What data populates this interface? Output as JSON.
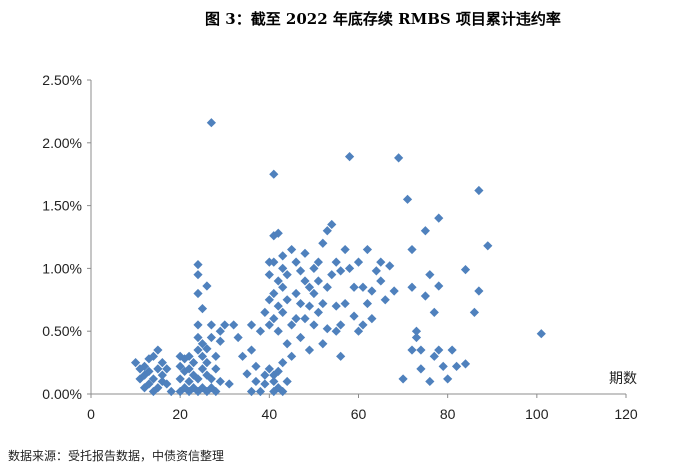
{
  "chart_data": {
    "type": "scatter",
    "title": "图 3：截至 2022 年底存续 RMBS 项目累计违约率",
    "xlabel": "期数",
    "ylabel": "",
    "source": "数据来源：受托报告数据，中债资信整理",
    "xlim": [
      0,
      120
    ],
    "ylim": [
      0,
      2.5
    ],
    "x_ticks": [
      "0",
      "20",
      "40",
      "60",
      "80",
      "100",
      "120"
    ],
    "y_ticks": [
      "0.00%",
      "0.50%",
      "1.00%",
      "1.50%",
      "2.00%",
      "2.50%"
    ],
    "grid": false,
    "legend": "none",
    "color": "#4f81bd",
    "series": [
      {
        "points": [
          [
            10,
            0.25
          ],
          [
            11,
            0.12
          ],
          [
            11,
            0.2
          ],
          [
            12,
            0.05
          ],
          [
            12,
            0.15
          ],
          [
            12,
            0.22
          ],
          [
            13,
            0.08
          ],
          [
            13,
            0.18
          ],
          [
            13,
            0.28
          ],
          [
            14,
            0.02
          ],
          [
            14,
            0.12
          ],
          [
            14,
            0.3
          ],
          [
            15,
            0.05
          ],
          [
            15,
            0.2
          ],
          [
            15,
            0.35
          ],
          [
            16,
            0.1
          ],
          [
            16,
            0.25
          ],
          [
            16,
            0.15
          ],
          [
            17,
            0.2
          ],
          [
            17,
            0.08
          ],
          [
            18,
            0.02
          ],
          [
            20,
            0.02
          ],
          [
            20,
            0.12
          ],
          [
            20,
            0.22
          ],
          [
            20,
            0.3
          ],
          [
            21,
            0.05
          ],
          [
            21,
            0.18
          ],
          [
            21,
            0.28
          ],
          [
            22,
            0.02
          ],
          [
            22,
            0.1
          ],
          [
            22,
            0.2
          ],
          [
            22,
            0.3
          ],
          [
            23,
            0.05
          ],
          [
            23,
            0.15
          ],
          [
            23,
            0.25
          ],
          [
            24,
            0.02
          ],
          [
            24,
            0.12
          ],
          [
            24,
            0.35
          ],
          [
            24,
            0.45
          ],
          [
            24,
            0.55
          ],
          [
            24,
            0.8
          ],
          [
            24,
            0.95
          ],
          [
            24,
            1.03
          ],
          [
            25,
            0.05
          ],
          [
            25,
            0.2
          ],
          [
            25,
            0.3
          ],
          [
            25,
            0.4
          ],
          [
            25,
            0.68
          ],
          [
            26,
            0.02
          ],
          [
            26,
            0.15
          ],
          [
            26,
            0.25
          ],
          [
            26,
            0.36
          ],
          [
            26,
            0.86
          ],
          [
            27,
            0.05
          ],
          [
            27,
            0.12
          ],
          [
            27,
            0.45
          ],
          [
            27,
            0.55
          ],
          [
            27,
            2.16
          ],
          [
            28,
            0.02
          ],
          [
            28,
            0.2
          ],
          [
            28,
            0.3
          ],
          [
            29,
            0.1
          ],
          [
            29,
            0.42
          ],
          [
            29,
            0.5
          ],
          [
            30,
            0.55
          ],
          [
            31,
            0.08
          ],
          [
            32,
            0.55
          ],
          [
            33,
            0.45
          ],
          [
            34,
            0.3
          ],
          [
            35,
            0.16
          ],
          [
            36,
            0.35
          ],
          [
            36,
            0.55
          ],
          [
            36,
            0.02
          ],
          [
            37,
            0.1
          ],
          [
            37,
            0.22
          ],
          [
            38,
            0.5
          ],
          [
            38,
            0.02
          ],
          [
            39,
            0.15
          ],
          [
            39,
            0.65
          ],
          [
            39,
            0.08
          ],
          [
            40,
            0.2
          ],
          [
            40,
            0.55
          ],
          [
            40,
            0.75
          ],
          [
            40,
            0.95
          ],
          [
            40,
            1.05
          ],
          [
            41,
            0.02
          ],
          [
            41,
            0.1
          ],
          [
            41,
            0.15
          ],
          [
            41,
            0.6
          ],
          [
            41,
            0.8
          ],
          [
            41,
            1.05
          ],
          [
            41,
            1.26
          ],
          [
            41,
            1.75
          ],
          [
            42,
            0.05
          ],
          [
            42,
            0.18
          ],
          [
            42,
            0.5
          ],
          [
            42,
            0.7
          ],
          [
            42,
            0.9
          ],
          [
            42,
            1.28
          ],
          [
            43,
            0.02
          ],
          [
            43,
            0.25
          ],
          [
            43,
            0.65
          ],
          [
            43,
            0.85
          ],
          [
            43,
            1.0
          ],
          [
            43,
            1.1
          ],
          [
            44,
            0.1
          ],
          [
            44,
            0.4
          ],
          [
            44,
            0.75
          ],
          [
            44,
            0.95
          ],
          [
            45,
            0.3
          ],
          [
            45,
            0.55
          ],
          [
            45,
            1.15
          ],
          [
            46,
            0.6
          ],
          [
            46,
            0.8
          ],
          [
            46,
            1.05
          ],
          [
            47,
            0.45
          ],
          [
            47,
            0.72
          ],
          [
            47,
            0.98
          ],
          [
            48,
            0.6
          ],
          [
            48,
            0.9
          ],
          [
            48,
            1.12
          ],
          [
            49,
            0.35
          ],
          [
            49,
            0.7
          ],
          [
            49,
            0.85
          ],
          [
            50,
            0.55
          ],
          [
            50,
            0.8
          ],
          [
            50,
            1.0
          ],
          [
            51,
            0.65
          ],
          [
            51,
            0.9
          ],
          [
            51,
            1.05
          ],
          [
            52,
            0.4
          ],
          [
            52,
            0.72
          ],
          [
            52,
            1.2
          ],
          [
            53,
            0.52
          ],
          [
            53,
            0.85
          ],
          [
            53,
            1.3
          ],
          [
            54,
            0.95
          ],
          [
            54,
            1.35
          ],
          [
            55,
            0.5
          ],
          [
            55,
            0.7
          ],
          [
            55,
            1.05
          ],
          [
            56,
            0.3
          ],
          [
            56,
            0.55
          ],
          [
            56,
            0.98
          ],
          [
            57,
            0.72
          ],
          [
            57,
            1.15
          ],
          [
            58,
            1.89
          ],
          [
            58,
            1.0
          ],
          [
            59,
            0.62
          ],
          [
            59,
            0.85
          ],
          [
            60,
            0.5
          ],
          [
            60,
            1.05
          ],
          [
            61,
            0.85
          ],
          [
            61,
            0.55
          ],
          [
            62,
            0.72
          ],
          [
            62,
            1.15
          ],
          [
            63,
            0.6
          ],
          [
            63,
            0.82
          ],
          [
            64,
            0.98
          ],
          [
            65,
            0.9
          ],
          [
            65,
            1.05
          ],
          [
            66,
            0.75
          ],
          [
            67,
            1.02
          ],
          [
            68,
            0.82
          ],
          [
            69,
            1.88
          ],
          [
            70,
            0.12
          ],
          [
            71,
            1.55
          ],
          [
            72,
            0.35
          ],
          [
            72,
            0.85
          ],
          [
            72,
            1.15
          ],
          [
            73,
            0.5
          ],
          [
            73,
            0.45
          ],
          [
            74,
            0.35
          ],
          [
            74,
            0.2
          ],
          [
            75,
            1.3
          ],
          [
            75,
            0.78
          ],
          [
            76,
            0.95
          ],
          [
            76,
            0.1
          ],
          [
            77,
            0.3
          ],
          [
            77,
            0.65
          ],
          [
            78,
            0.35
          ],
          [
            78,
            0.86
          ],
          [
            78,
            1.4
          ],
          [
            79,
            0.22
          ],
          [
            80,
            0.12
          ],
          [
            81,
            0.35
          ],
          [
            82,
            0.22
          ],
          [
            84,
            0.99
          ],
          [
            84,
            0.24
          ],
          [
            86,
            0.65
          ],
          [
            87,
            1.62
          ],
          [
            87,
            0.82
          ],
          [
            89,
            1.18
          ],
          [
            101,
            0.48
          ]
        ]
      }
    ]
  }
}
